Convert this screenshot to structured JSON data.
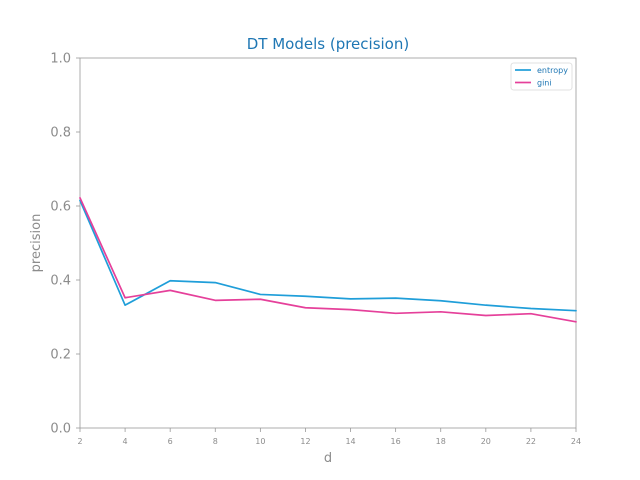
{
  "chart_data": {
    "type": "line",
    "title": "DT Models (precision)",
    "xlabel": "d",
    "ylabel": "precision",
    "x": [
      2,
      4,
      6,
      8,
      10,
      12,
      14,
      16,
      18,
      20,
      22,
      24
    ],
    "x_ticks": [
      "2",
      "4",
      "6",
      "8",
      "10",
      "12",
      "14",
      "16",
      "18",
      "20",
      "22",
      "24"
    ],
    "y_ticks": [
      "0.0",
      "0.2",
      "0.4",
      "0.6",
      "0.8",
      "1.0"
    ],
    "xlim": [
      2,
      24
    ],
    "ylim": [
      0,
      1
    ],
    "grid": false,
    "legend_position": "top-right",
    "series": [
      {
        "name": "entropy",
        "color": "#1f9ed9",
        "values": [
          0.615,
          0.332,
          0.398,
          0.393,
          0.361,
          0.356,
          0.349,
          0.351,
          0.344,
          0.332,
          0.323,
          0.317
        ]
      },
      {
        "name": "gini",
        "color": "#e5409a",
        "values": [
          0.622,
          0.352,
          0.372,
          0.345,
          0.348,
          0.325,
          0.32,
          0.31,
          0.314,
          0.304,
          0.309,
          0.287
        ]
      }
    ]
  }
}
